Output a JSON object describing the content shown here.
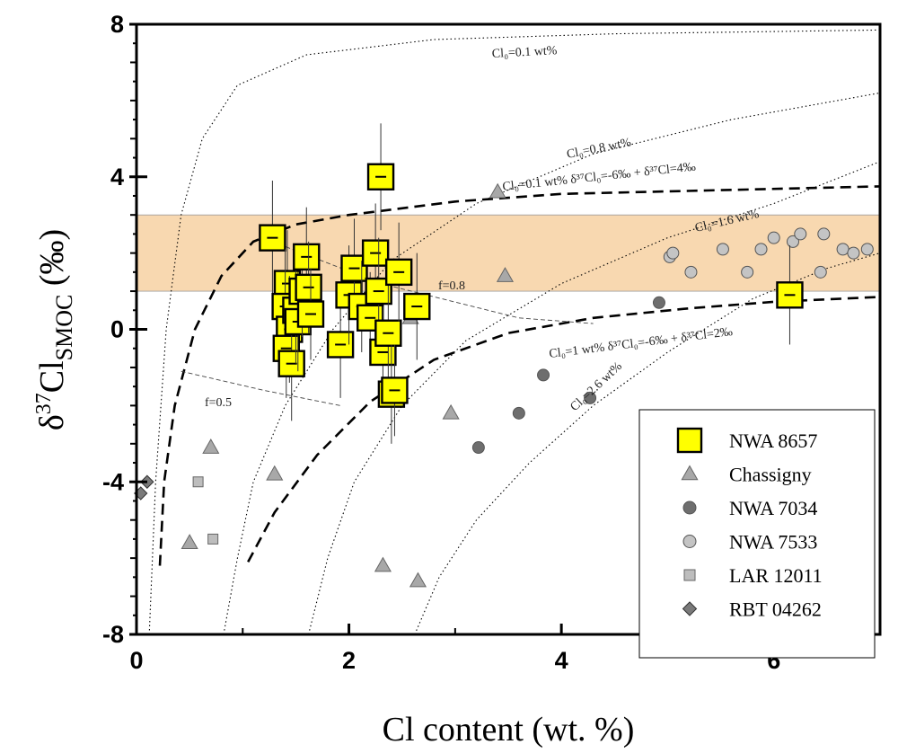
{
  "chart_data": {
    "type": "scatter",
    "xlabel": "Cl content (wt. %)",
    "ylabel_main": "δ",
    "ylabel_sup": "37",
    "ylabel_rest": "Cl",
    "ylabel_sub": "SMOC",
    "ylabel_tail": " (‰)",
    "xlim": [
      0,
      7
    ],
    "ylim": [
      -8,
      8
    ],
    "xticks": [
      0,
      2,
      4,
      6
    ],
    "yticks": [
      -8,
      -4,
      0,
      4,
      8
    ],
    "band": [
      1.0,
      3.0
    ],
    "series": [
      {
        "name": "NWA 8657",
        "marker": "square",
        "points": [
          {
            "x": 1.28,
            "y": 2.4,
            "err": 1.5
          },
          {
            "x": 1.42,
            "y": 1.2,
            "err": 1.4
          },
          {
            "x": 1.4,
            "y": 0.6,
            "err": 1.5
          },
          {
            "x": 1.44,
            "y": 0.0,
            "err": 1.4
          },
          {
            "x": 1.41,
            "y": -0.5,
            "err": 1.3
          },
          {
            "x": 1.46,
            "y": -0.9,
            "err": 1.5
          },
          {
            "x": 1.5,
            "y": 0.5,
            "err": 1.4
          },
          {
            "x": 1.52,
            "y": 0.2,
            "err": 1.3
          },
          {
            "x": 1.56,
            "y": 1.0,
            "err": 1.2
          },
          {
            "x": 1.6,
            "y": 1.9,
            "err": 1.3
          },
          {
            "x": 1.62,
            "y": 1.1,
            "err": 1.2
          },
          {
            "x": 1.64,
            "y": 0.4,
            "err": 1.2
          },
          {
            "x": 1.92,
            "y": -0.4,
            "err": 1.4
          },
          {
            "x": 2.0,
            "y": 0.9,
            "err": 1.3
          },
          {
            "x": 2.05,
            "y": 1.6,
            "err": 1.3
          },
          {
            "x": 2.12,
            "y": 0.6,
            "err": 1.2
          },
          {
            "x": 2.2,
            "y": 0.3,
            "err": 1.2
          },
          {
            "x": 2.25,
            "y": 2.0,
            "err": 1.3
          },
          {
            "x": 2.28,
            "y": 1.0,
            "err": 1.4
          },
          {
            "x": 2.3,
            "y": 4.0,
            "err": 1.4
          },
          {
            "x": 2.32,
            "y": -0.6,
            "err": 1.2
          },
          {
            "x": 2.37,
            "y": -0.1,
            "err": 1.3
          },
          {
            "x": 2.4,
            "y": -1.7,
            "err": 1.3
          },
          {
            "x": 2.43,
            "y": -1.6,
            "err": 1.2
          },
          {
            "x": 2.47,
            "y": 1.5,
            "err": 1.3
          },
          {
            "x": 2.64,
            "y": 0.6,
            "err": 1.4
          },
          {
            "x": 6.15,
            "y": 0.9,
            "err": 1.3
          }
        ]
      },
      {
        "name": "Chassigny",
        "marker": "triangle",
        "points": [
          {
            "x": 0.7,
            "y": -3.1
          },
          {
            "x": 0.5,
            "y": -5.6
          },
          {
            "x": 1.3,
            "y": -3.8
          },
          {
            "x": 2.32,
            "y": -6.2
          },
          {
            "x": 2.65,
            "y": -6.6
          },
          {
            "x": 2.96,
            "y": -2.2
          },
          {
            "x": 3.4,
            "y": 3.6
          },
          {
            "x": 3.47,
            "y": 1.4
          },
          {
            "x": 2.58,
            "y": 0.3
          }
        ]
      },
      {
        "name": "NWA 7034",
        "marker": "circle",
        "points": [
          {
            "x": 3.22,
            "y": -3.1
          },
          {
            "x": 3.6,
            "y": -2.2
          },
          {
            "x": 3.83,
            "y": -1.2
          },
          {
            "x": 4.27,
            "y": -1.8
          },
          {
            "x": 4.92,
            "y": 0.7
          }
        ]
      },
      {
        "name": "NWA 7533",
        "marker": "circle",
        "points": [
          {
            "x": 5.02,
            "y": 1.9
          },
          {
            "x": 5.05,
            "y": 2.0
          },
          {
            "x": 5.22,
            "y": 1.5
          },
          {
            "x": 5.52,
            "y": 2.1
          },
          {
            "x": 5.75,
            "y": 1.5
          },
          {
            "x": 5.88,
            "y": 2.1
          },
          {
            "x": 6.0,
            "y": 2.4
          },
          {
            "x": 6.18,
            "y": 2.3
          },
          {
            "x": 6.25,
            "y": 2.5
          },
          {
            "x": 6.44,
            "y": 1.5
          },
          {
            "x": 6.47,
            "y": 2.5
          },
          {
            "x": 6.65,
            "y": 2.1
          },
          {
            "x": 6.75,
            "y": 2.0
          },
          {
            "x": 6.88,
            "y": 2.1
          }
        ]
      },
      {
        "name": "LAR 12011",
        "marker": "square-small",
        "points": [
          {
            "x": 0.58,
            "y": -4.0
          },
          {
            "x": 0.72,
            "y": -5.5
          }
        ]
      },
      {
        "name": "RBT 04262",
        "marker": "diamond",
        "points": [
          {
            "x": 0.1,
            "y": -4.0
          },
          {
            "x": 0.04,
            "y": -4.3
          }
        ]
      }
    ],
    "curve_labels": {
      "dot_01": "Cl₀=0.1 wt%",
      "dot_08": "Cl₀=0.8 wt%",
      "dot_16": "Cl₀=1.6 wt%",
      "dot_26": "Cl₀=2.6 wt%",
      "dash_upper": "Cl₀=0.1 wt% δ³⁷Cl₀=-6‰ + δ³⁷Cl=4‰",
      "dash_lower": "Cl₀=1 wt% δ³⁷Cl₀=-6‰ + δ³⁷Cl=2‰",
      "f08": "f=0.8",
      "f05": "f=0.5"
    }
  },
  "colors": {
    "band": "#f8d8b0",
    "nwa8657": "#ffff00",
    "chassigny": "#a8a8a8",
    "nwa7034": "#6e6e6e",
    "nwa7533": "#c4c4c4",
    "lar12011": "#bdbdbd",
    "rbt04262": "#7a7a7a"
  }
}
